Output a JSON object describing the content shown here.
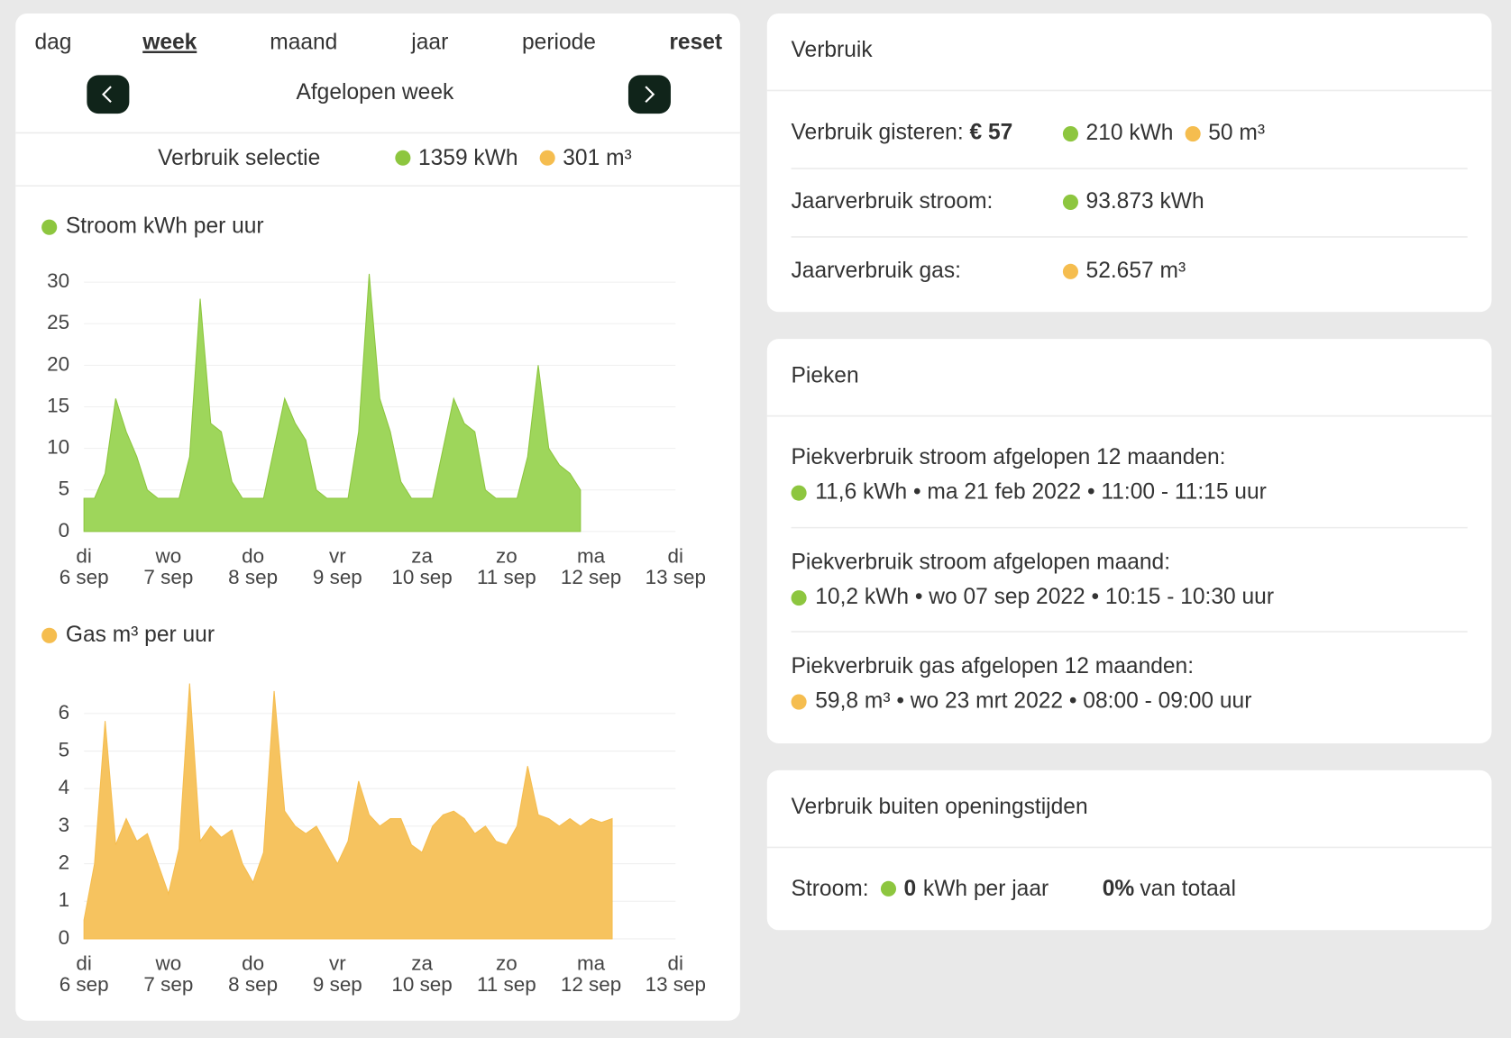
{
  "nav": {
    "tabs": [
      "dag",
      "week",
      "maand",
      "jaar",
      "periode"
    ],
    "active": 1,
    "reset": "reset",
    "period": "Afgelopen week"
  },
  "selection": {
    "label": "Verbruik selectie",
    "stroom": "1359 kWh",
    "gas": "301 m³"
  },
  "chart_data": [
    {
      "type": "area",
      "title": "Stroom kWh per uur",
      "color": "#8dc63f",
      "fill": "#9ed65b",
      "x": [
        0,
        3,
        6,
        9,
        12,
        15,
        18,
        21,
        24,
        27,
        30,
        33,
        36,
        39,
        42,
        45,
        48,
        51,
        54,
        57,
        60,
        63,
        66,
        69,
        72,
        75,
        78,
        81,
        84,
        87,
        90,
        93,
        96,
        99,
        102,
        105,
        108,
        111,
        114,
        117,
        120,
        123,
        126,
        129,
        132,
        135,
        138,
        141
      ],
      "values": [
        4,
        4,
        7,
        16,
        12,
        9,
        5,
        4,
        4,
        4,
        9,
        28,
        13,
        12,
        6,
        4,
        4,
        4,
        10,
        16,
        13,
        11,
        5,
        4,
        4,
        4,
        12,
        31,
        16,
        12,
        6,
        4,
        4,
        4,
        10,
        16,
        13,
        12,
        5,
        4,
        4,
        4,
        9,
        20,
        10,
        8,
        7,
        5
      ],
      "xlim": [
        0,
        168
      ],
      "ylim": [
        0,
        30
      ],
      "yticks": [
        0,
        5,
        10,
        15,
        20,
        25,
        30
      ],
      "xticks": [
        {
          "value": 0,
          "label": [
            "di",
            "6 sep"
          ]
        },
        {
          "value": 24,
          "label": [
            "wo",
            "7 sep"
          ]
        },
        {
          "value": 48,
          "label": [
            "do",
            "8 sep"
          ]
        },
        {
          "value": 72,
          "label": [
            "vr",
            "9 sep"
          ]
        },
        {
          "value": 96,
          "label": [
            "za",
            "10 sep"
          ]
        },
        {
          "value": 120,
          "label": [
            "zo",
            "11 sep"
          ]
        },
        {
          "value": 144,
          "label": [
            "ma",
            "12 sep"
          ]
        },
        {
          "value": 168,
          "label": [
            "di",
            "13 sep"
          ]
        }
      ],
      "grid": true
    },
    {
      "type": "area",
      "title": "Gas m³ per uur",
      "color": "#f5bd4f",
      "fill": "#f6c35f",
      "x": [
        0,
        3,
        6,
        9,
        12,
        15,
        18,
        21,
        24,
        27,
        30,
        33,
        36,
        39,
        42,
        45,
        48,
        51,
        54,
        57,
        60,
        63,
        66,
        69,
        72,
        75,
        78,
        81,
        84,
        87,
        90,
        93,
        96,
        99,
        102,
        105,
        108,
        111,
        114,
        117,
        120,
        123,
        126,
        129,
        132,
        135,
        138,
        141,
        144,
        147,
        150
      ],
      "values": [
        0.5,
        2,
        5.8,
        2.5,
        3.2,
        2.6,
        2.8,
        2,
        1.2,
        2.4,
        6.8,
        2.6,
        3,
        2.7,
        2.9,
        2,
        1.5,
        2.3,
        6.6,
        3.4,
        3,
        2.8,
        3,
        2.5,
        2,
        2.6,
        4.2,
        3.3,
        3,
        3.2,
        3.2,
        2.5,
        2.3,
        3,
        3.3,
        3.4,
        3.2,
        2.8,
        3,
        2.6,
        2.5,
        3,
        4.6,
        3.3,
        3.2,
        3,
        3.2,
        3,
        3.2,
        3.1,
        3.2
      ],
      "xlim": [
        0,
        168
      ],
      "ylim": [
        0,
        7
      ],
      "yticks": [
        0,
        1,
        2,
        3,
        4,
        5,
        6
      ],
      "xticks": [
        {
          "value": 0,
          "label": [
            "di",
            "6 sep"
          ]
        },
        {
          "value": 24,
          "label": [
            "wo",
            "7 sep"
          ]
        },
        {
          "value": 48,
          "label": [
            "do",
            "8 sep"
          ]
        },
        {
          "value": 72,
          "label": [
            "vr",
            "9 sep"
          ]
        },
        {
          "value": 96,
          "label": [
            "za",
            "10 sep"
          ]
        },
        {
          "value": 120,
          "label": [
            "zo",
            "11 sep"
          ]
        },
        {
          "value": 144,
          "label": [
            "ma",
            "12 sep"
          ]
        },
        {
          "value": 168,
          "label": [
            "di",
            "13 sep"
          ]
        }
      ],
      "grid": true
    }
  ],
  "verbruik": {
    "title": "Verbruik",
    "gisteren_label": "Verbruik gisteren:",
    "gisteren_euro": "€ 57",
    "gisteren_kwh": "210 kWh",
    "gisteren_gas": "50 m³",
    "stroom_label": "Jaarverbruik stroom:",
    "stroom": "93.873 kWh",
    "gas_label": "Jaarverbruik gas:",
    "gas": "52.657 m³"
  },
  "pieken": {
    "title": "Pieken",
    "items": [
      {
        "label": "Piekverbruik stroom afgelopen 12 maanden:",
        "value": "11,6 kWh • ma 21 feb 2022 • 11:00 - 11:15 uur"
      },
      {
        "label": "Piekverbruik stroom afgelopen maand:",
        "value": "10,2 kWh • wo 07 sep 2022 • 10:15 - 10:30 uur"
      },
      {
        "label": "Piekverbruik gas afgelopen 12 maanden:",
        "value": "59,8 m³ • wo 23 mrt 2022 • 08:00 - 09:00 uur"
      }
    ]
  },
  "buiten": {
    "title": "Verbruik buiten openingstijden",
    "label": "Stroom:",
    "kwh": "0",
    "kwh_unit": "kWh per jaar",
    "pct": "0%",
    "pct_text": "van totaal"
  }
}
